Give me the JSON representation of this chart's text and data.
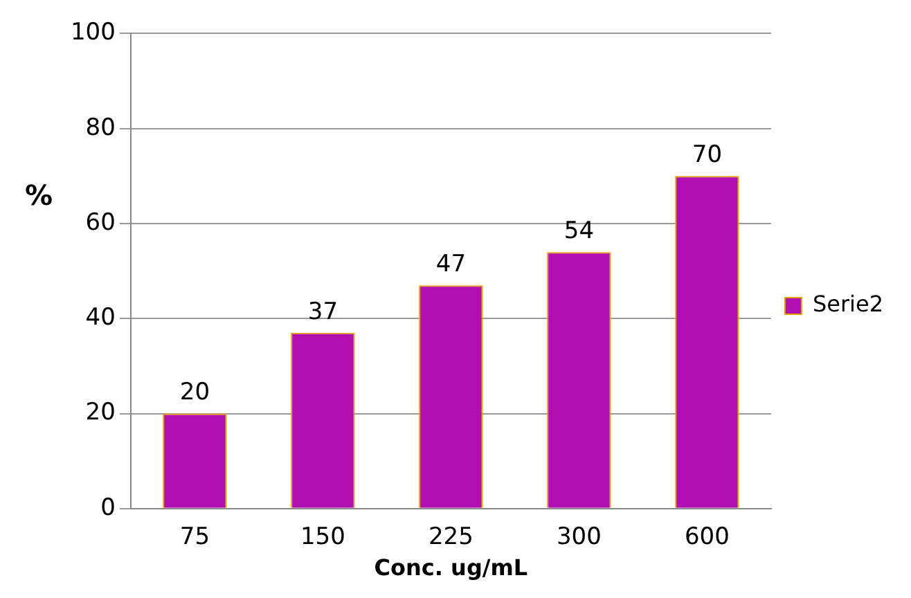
{
  "chart_data": {
    "type": "bar",
    "xlabel": "Conc. ug/mL",
    "ylabel": "%",
    "categories": [
      "75",
      "150",
      "225",
      "300",
      "600"
    ],
    "series": [
      {
        "name": "Serie2",
        "color": "#b010b0",
        "values": [
          20,
          37,
          47,
          54,
          70
        ]
      }
    ],
    "ylim": [
      0,
      100
    ],
    "yticks": [
      0,
      20,
      40,
      60,
      80,
      100
    ],
    "grid": "y",
    "legend": "right",
    "data_labels": true
  }
}
